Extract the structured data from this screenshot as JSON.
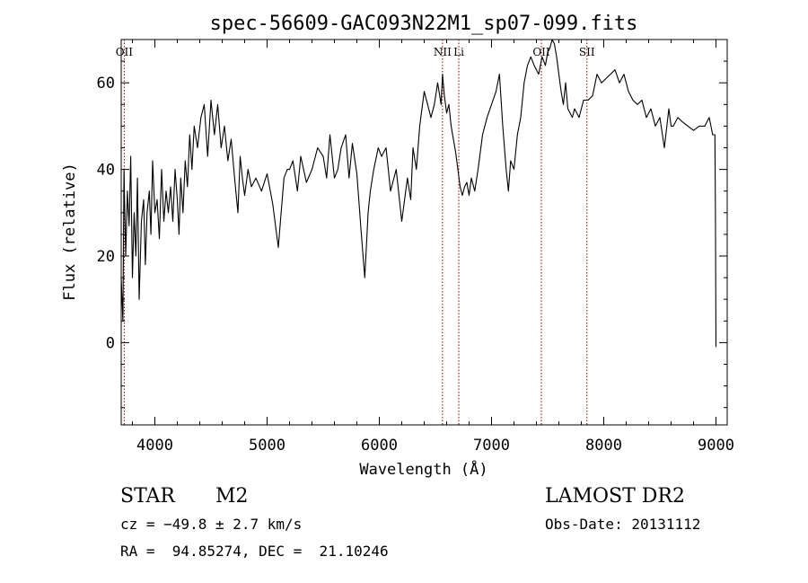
{
  "chart_data": {
    "type": "line",
    "title": "spec-56609-GAC093N22M1_sp07-099.fits",
    "xlabel": "Wavelength (Å)",
    "ylabel": "Flux (relative)",
    "xlim": [
      3700,
      9100
    ],
    "ylim": [
      -19,
      70
    ],
    "xticks": [
      4000,
      5000,
      6000,
      7000,
      8000,
      9000
    ],
    "yticks": [
      0,
      20,
      40,
      60
    ],
    "grid": false,
    "series": [
      {
        "x": [
          3700,
          3715,
          3725,
          3740,
          3755,
          3770,
          3785,
          3800,
          3815,
          3830,
          3845,
          3860,
          3880,
          3900,
          3915,
          3930,
          3950,
          3965,
          3980,
          4000,
          4020,
          4040,
          4060,
          4080,
          4100,
          4120,
          4140,
          4160,
          4180,
          4200,
          4215,
          4230,
          4250,
          4270,
          4290,
          4310,
          4330,
          4350,
          4380,
          4410,
          4440,
          4470,
          4500,
          4530,
          4560,
          4590,
          4620,
          4650,
          4680,
          4710,
          4740,
          4760,
          4780,
          4800,
          4830,
          4860,
          4900,
          4950,
          5000,
          5050,
          5100,
          5150,
          5180,
          5200,
          5230,
          5270,
          5300,
          5350,
          5400,
          5450,
          5500,
          5530,
          5560,
          5600,
          5630,
          5660,
          5700,
          5730,
          5760,
          5800,
          5840,
          5870,
          5890,
          5900,
          5920,
          5950,
          5990,
          6020,
          6060,
          6100,
          6150,
          6200,
          6250,
          6280,
          6300,
          6330,
          6360,
          6400,
          6430,
          6460,
          6490,
          6520,
          6550,
          6563,
          6580,
          6600,
          6620,
          6640,
          6660,
          6680,
          6700,
          6720,
          6740,
          6760,
          6780,
          6800,
          6820,
          6850,
          6880,
          6920,
          6960,
          7000,
          7040,
          7070,
          7100,
          7130,
          7150,
          7170,
          7200,
          7230,
          7260,
          7290,
          7320,
          7350,
          7380,
          7420,
          7450,
          7480,
          7500,
          7520,
          7540,
          7560,
          7580,
          7600,
          7620,
          7640,
          7660,
          7680,
          7700,
          7720,
          7740,
          7760,
          7780,
          7820,
          7860,
          7900,
          7940,
          7980,
          8020,
          8060,
          8100,
          8140,
          8180,
          8220,
          8260,
          8300,
          8340,
          8380,
          8420,
          8460,
          8500,
          8540,
          8580,
          8600,
          8620,
          8660,
          8700,
          8750,
          8800,
          8850,
          8900,
          8940,
          8970,
          8990,
          8995,
          9000
        ],
        "y": [
          15,
          5,
          40,
          20,
          35,
          27,
          43,
          15,
          30,
          20,
          38,
          10,
          28,
          33,
          18,
          30,
          35,
          25,
          42,
          30,
          33,
          24,
          40,
          28,
          35,
          30,
          36,
          28,
          40,
          33,
          25,
          38,
          30,
          42,
          36,
          48,
          40,
          50,
          45,
          52,
          55,
          43,
          56,
          48,
          55,
          45,
          50,
          42,
          47,
          38,
          30,
          43,
          38,
          34,
          40,
          36,
          38,
          35,
          39,
          32,
          22,
          38,
          40,
          40,
          42,
          35,
          43,
          37,
          40,
          45,
          43,
          38,
          48,
          38,
          40,
          45,
          48,
          38,
          46,
          39,
          25,
          15,
          25,
          30,
          35,
          40,
          45,
          43,
          45,
          35,
          40,
          28,
          38,
          33,
          45,
          40,
          50,
          58,
          55,
          52,
          55,
          60,
          55,
          62,
          57,
          53,
          55,
          50,
          47,
          44,
          40,
          36,
          34,
          36,
          37,
          34,
          38,
          35,
          40,
          48,
          52,
          55,
          58,
          62,
          50,
          40,
          35,
          42,
          40,
          48,
          52,
          60,
          64,
          66,
          64,
          62,
          66,
          64,
          67,
          68,
          70,
          69,
          66,
          62,
          58,
          55,
          60,
          54,
          53,
          52,
          54,
          53,
          52,
          56,
          56,
          57,
          62,
          60,
          61,
          62,
          63,
          60,
          62,
          58,
          56,
          55,
          56,
          52,
          54,
          50,
          52,
          45,
          54,
          50,
          50,
          52,
          51,
          50,
          49,
          50,
          50,
          52,
          48,
          48,
          30,
          -1
        ],
        "color": "#000000"
      }
    ],
    "lines": [
      {
        "label": "OII",
        "x": 3727
      },
      {
        "label": "NII",
        "x": 6563
      },
      {
        "label": "Li",
        "x": 6708
      },
      {
        "label": "OII",
        "x": 7444
      },
      {
        "label": "SII",
        "x": 7850
      }
    ],
    "marker_color": "#8b0000"
  },
  "info": {
    "object_class": "STAR",
    "subclass": "M2",
    "survey": "LAMOST DR2",
    "cz": "cz = −49.8 ± 2.7 km/s",
    "obs_date": "Obs-Date: 20131112",
    "coords": "RA =  94.85274, DEC =  21.10246"
  }
}
